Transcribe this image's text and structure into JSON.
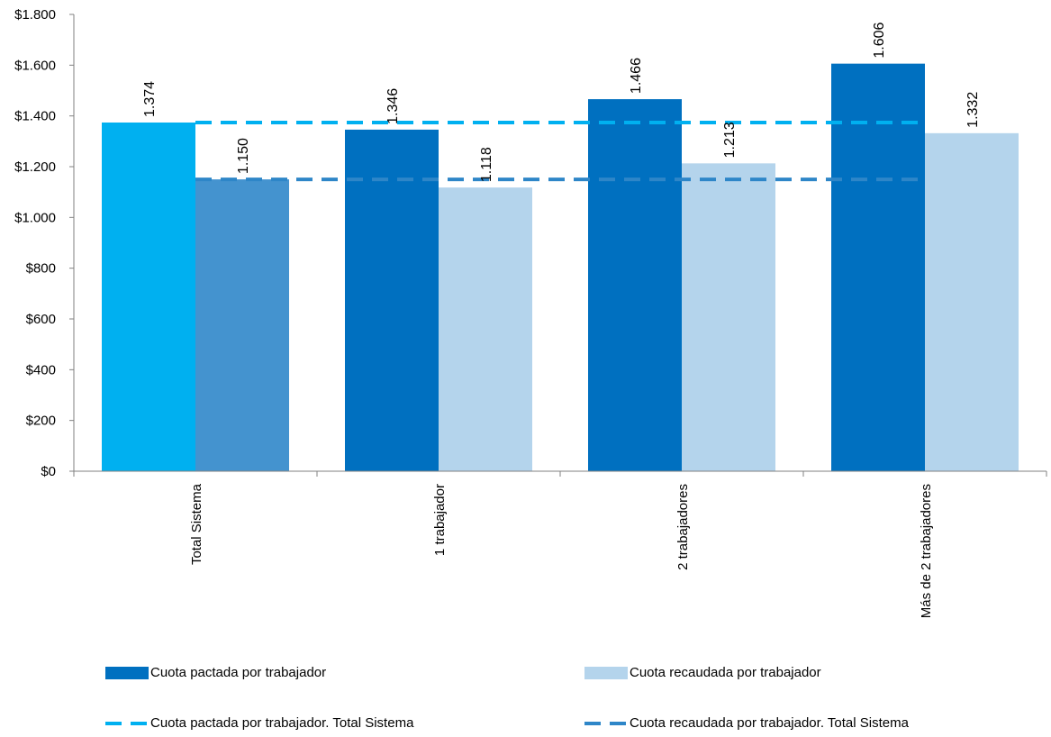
{
  "chart_data": {
    "type": "bar",
    "categories": [
      "Total Sistema",
      "1 trabajador",
      "2 trabajadores",
      "Más de 2 trabajadores"
    ],
    "series": [
      {
        "name": "Cuota pactada por trabajador",
        "values": [
          1374,
          1346,
          1466,
          1606
        ],
        "labels": [
          "1.374",
          "1.346",
          "1.466",
          "1.606"
        ],
        "color": "#0070C0",
        "first_bar_color": "#00B0F0"
      },
      {
        "name": "Cuota recaudada por trabajador",
        "values": [
          1150,
          1118,
          1213,
          1332
        ],
        "labels": [
          "1.150",
          "1.118",
          "1.213",
          "1.332"
        ],
        "color": "#B4D4EC",
        "first_bar_color": "#4493CF"
      }
    ],
    "reference_lines": [
      {
        "name": "Cuota pactada por trabajador. Total Sistema",
        "value": 1374,
        "color": "#00B0F0",
        "style": "dashed"
      },
      {
        "name": "Cuota recaudada por trabajador. Total Sistema",
        "value": 1150,
        "color": "#2E86C8",
        "style": "dashed"
      }
    ],
    "ylim": [
      0,
      1800
    ],
    "yticks": [
      0,
      200,
      400,
      600,
      800,
      1000,
      1200,
      1400,
      1600,
      1800
    ],
    "ytick_labels": [
      "$0",
      "$200",
      "$400",
      "$600",
      "$800",
      "$1.000",
      "$1.200",
      "$1.400",
      "$1.600",
      "$1.800"
    ],
    "grid": false,
    "legend_position": "bottom"
  }
}
